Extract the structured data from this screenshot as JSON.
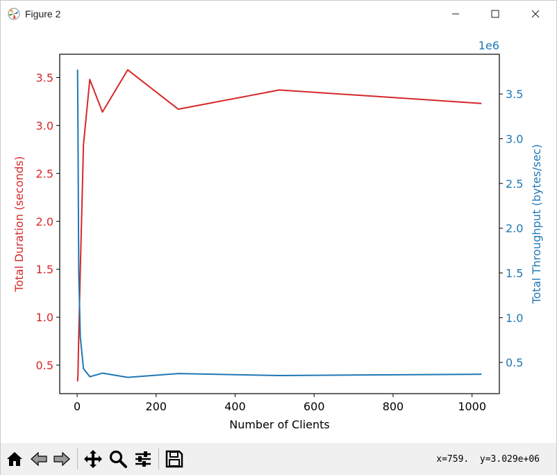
{
  "window": {
    "title": "Figure 2",
    "icon": "matplotlib-icon",
    "controls": [
      "minimize-icon",
      "maximize-icon",
      "close-icon"
    ]
  },
  "toolbar": {
    "tools": [
      "home-icon",
      "back-arrow-icon",
      "forward-arrow-icon",
      "pan-icon",
      "zoom-icon",
      "configure-subplots-icon",
      "save-icon"
    ],
    "coords": "x=759.  y=3.029e+06"
  },
  "chart_data": {
    "type": "line",
    "title": "",
    "xlabel": "Number of Clients",
    "ylabel_left": "Total Duration (seconds)",
    "ylabel_right": "Total Throughput (bytes/sec)",
    "right_offset_text": "1e6",
    "x": [
      1,
      2,
      4,
      8,
      16,
      32,
      64,
      128,
      256,
      512,
      1024
    ],
    "xlim": [
      -44.15,
      1069.15
    ],
    "xticks": [
      0,
      200,
      400,
      600,
      800,
      1000
    ],
    "xtick_labels": [
      "0",
      "200",
      "400",
      "600",
      "800",
      "1000"
    ],
    "left_axis": {
      "color": "#d62728",
      "ylim": [
        0.203,
        3.743
      ],
      "ticks": [
        0.5,
        1.0,
        1.5,
        2.0,
        2.5,
        3.0,
        3.5
      ],
      "tick_labels": [
        "0.5",
        "1.0",
        "1.5",
        "2.0",
        "2.5",
        "3.0",
        "3.5"
      ]
    },
    "right_axis": {
      "color": "#1f77b4",
      "ylim": [
        151000,
        3944000
      ],
      "ticks": [
        500000,
        1000000,
        1500000,
        2000000,
        2500000,
        3000000,
        3500000
      ],
      "tick_labels": [
        "0.5",
        "1.0",
        "1.5",
        "2.0",
        "2.5",
        "3.0",
        "3.5"
      ]
    },
    "series": [
      {
        "axis": "left",
        "color": "#d62728",
        "values": [
          0.33,
          0.4,
          0.8,
          1.5,
          2.8,
          3.48,
          3.14,
          3.58,
          3.17,
          3.37,
          3.23
        ]
      },
      {
        "axis": "right",
        "color": "#1f77b4",
        "values": [
          3772000,
          3150000,
          1500000,
          780000,
          430000,
          340000,
          380000,
          333000,
          375000,
          353000,
          368000
        ]
      }
    ],
    "grid": false,
    "legend": "none"
  }
}
